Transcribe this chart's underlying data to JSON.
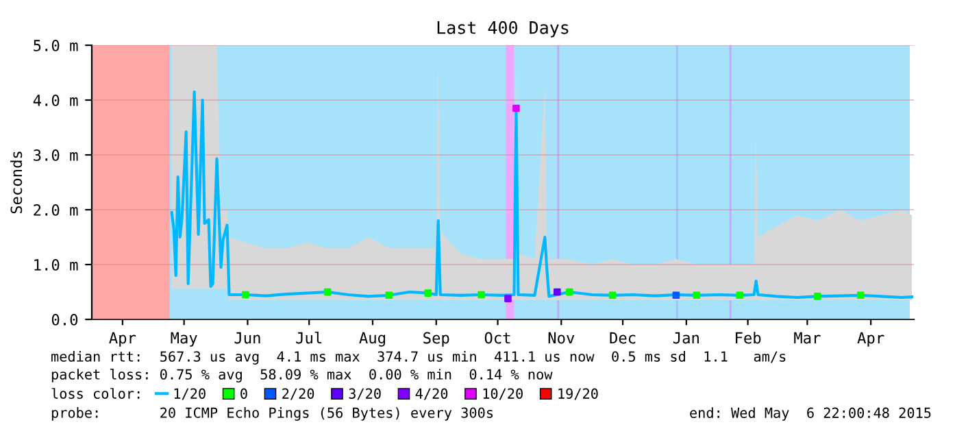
{
  "chart_data": {
    "type": "line",
    "title": "Last 400 Days",
    "ylabel": "Seconds",
    "x": [
      "2014-05-10",
      "2014-05-11",
      "2014-05-12",
      "2014-05-13",
      "2014-05-14",
      "2014-05-15",
      "2014-05-17",
      "2014-05-18",
      "2014-05-20",
      "2014-05-21",
      "2014-05-23",
      "2014-05-25",
      "2014-05-26",
      "2014-05-28",
      "2014-05-29",
      "2014-05-30",
      "2014-06-01",
      "2014-06-03",
      "2014-06-04",
      "2014-06-06",
      "2014-06-07",
      "2014-06-15",
      "2014-06-25",
      "2014-07-05",
      "2014-07-15",
      "2014-07-25",
      "2014-08-04",
      "2014-08-14",
      "2014-08-24",
      "2014-09-03",
      "2014-09-12",
      "2014-09-16",
      "2014-09-17",
      "2014-09-18",
      "2014-09-28",
      "2014-10-08",
      "2014-10-18",
      "2014-10-24",
      "2014-10-25",
      "2014-10-26",
      "2014-11-03",
      "2014-11-08",
      "2014-11-09",
      "2014-11-10",
      "2014-11-20",
      "2014-12-01",
      "2014-12-11",
      "2014-12-21",
      "2015-01-01",
      "2015-01-11",
      "2015-01-21",
      "2015-02-01",
      "2015-02-11",
      "2015-02-18",
      "2015-02-19",
      "2015-02-20",
      "2015-03-01",
      "2015-03-11",
      "2015-03-21",
      "2015-04-01",
      "2015-04-11",
      "2015-04-21",
      "2015-05-01",
      "2015-05-06"
    ],
    "series": [
      {
        "name": "1/20",
        "color": "#00b8ff",
        "values": [
          1.95,
          1.65,
          0.8,
          2.6,
          1.5,
          1.85,
          3.42,
          0.65,
          2.97,
          4.15,
          1.55,
          4.0,
          1.75,
          1.82,
          0.6,
          0.65,
          2.93,
          0.95,
          1.45,
          1.72,
          0.45,
          0.45,
          0.43,
          0.46,
          0.48,
          0.5,
          0.45,
          0.42,
          0.44,
          0.5,
          0.48,
          0.45,
          1.8,
          0.45,
          0.44,
          0.45,
          0.44,
          0.45,
          3.85,
          0.45,
          0.44,
          1.5,
          0.9,
          0.42,
          0.5,
          0.45,
          0.44,
          0.45,
          0.43,
          0.45,
          0.44,
          0.45,
          0.44,
          0.45,
          0.7,
          0.45,
          0.42,
          0.4,
          0.42,
          0.43,
          0.44,
          0.42,
          0.4,
          0.41
        ],
        "lower": [
          0.55,
          0.55,
          0.55,
          0.55,
          0.55,
          0.55,
          0.55,
          0.55,
          0.55,
          0.55,
          0.55,
          0.55,
          0.55,
          0.55,
          0.55,
          0.55,
          0.55,
          0.55,
          0.55,
          0.55,
          0.35,
          0.35,
          0.35,
          0.35,
          0.35,
          0.35,
          0.35,
          0.35,
          0.35,
          0.35,
          0.35,
          0.35,
          0.35,
          0.35,
          0.35,
          0.35,
          0.35,
          0.35,
          0.35,
          0.35,
          0.35,
          0.35,
          0.35,
          0.35,
          0.35,
          0.35,
          0.35,
          0.35,
          0.35,
          0.35,
          0.35,
          0.35,
          0.35,
          0.35,
          0.35,
          0.35,
          0.35,
          0.35,
          0.35,
          0.35,
          0.35,
          0.35,
          0.35,
          0.35
        ],
        "upper": [
          5.0,
          5.0,
          5.0,
          5.0,
          5.0,
          5.0,
          5.0,
          5.0,
          5.0,
          5.0,
          5.0,
          5.0,
          5.0,
          5.0,
          5.0,
          5.0,
          5.0,
          2.0,
          2.0,
          2.0,
          1.5,
          1.4,
          1.3,
          1.3,
          1.4,
          1.3,
          1.3,
          1.5,
          1.3,
          1.3,
          1.3,
          1.3,
          5.0,
          1.6,
          1.2,
          1.1,
          1.1,
          1.1,
          5.0,
          1.2,
          1.1,
          4.3,
          1.6,
          1.1,
          1.1,
          1.0,
          1.1,
          1.0,
          1.0,
          1.1,
          1.0,
          1.0,
          1.0,
          1.0,
          3.5,
          1.5,
          1.7,
          1.9,
          1.8,
          2.0,
          1.8,
          1.9,
          2.0,
          1.9
        ]
      },
      {
        "type": "scatter",
        "name": "0",
        "color": "#00ff00",
        "marker": "square",
        "x": [
          "2014-06-15",
          "2014-07-25",
          "2014-08-24",
          "2014-09-12",
          "2014-10-08",
          "2014-11-20",
          "2014-12-11",
          "2015-01-21",
          "2015-02-11",
          "2015-03-21",
          "2015-04-11"
        ],
        "values": [
          0.45,
          0.5,
          0.44,
          0.48,
          0.45,
          0.5,
          0.44,
          0.44,
          0.44,
          0.42,
          0.44
        ]
      },
      {
        "type": "scatter",
        "name": "2/20",
        "color": "#0059ff",
        "marker": "square",
        "x": [
          "2015-01-11"
        ],
        "values": [
          0.44
        ]
      },
      {
        "type": "scatter",
        "name": "3/20",
        "color": "#5e00ff",
        "marker": "square",
        "x": [
          "2014-11-14"
        ],
        "values": [
          0.5
        ]
      },
      {
        "type": "scatter",
        "name": "4/20",
        "color": "#7e00ff",
        "marker": "square",
        "x": [
          "2014-10-21"
        ],
        "values": [
          0.38
        ]
      },
      {
        "type": "scatter",
        "name": "10/20",
        "color": "#dd00ff",
        "marker": "square",
        "x": [
          "2014-10-25"
        ],
        "values": [
          3.85
        ]
      }
    ],
    "bands": [
      {
        "axis": "x",
        "from": "2014-05-09",
        "to": "2015-05-05",
        "color": "#a6e3fb"
      },
      {
        "axis": "x",
        "from": "2015-01-11",
        "to": "2015-01-12",
        "color": "#a6c0fb"
      },
      {
        "axis": "x",
        "from": "2015-02-06",
        "to": "2015-02-07",
        "color": "#c8a6fb"
      },
      {
        "axis": "x",
        "from": "2014-11-14",
        "to": "2014-11-15",
        "color": "#c8a6fb"
      },
      {
        "axis": "x",
        "from": "2014-10-20",
        "to": "2014-10-24",
        "color": "#f0a6fb"
      },
      {
        "axis": "x",
        "from": "2014-04-01",
        "to": "2014-05-09",
        "label": "19/20",
        "color": "#ff0000"
      }
    ],
    "xlim": [
      "2014-04-01",
      "2015-05-07"
    ],
    "xticks": [
      {
        "value": "2014-04-16",
        "label": "Apr"
      },
      {
        "value": "2014-05-16",
        "label": "May"
      },
      {
        "value": "2014-06-16",
        "label": "Jun"
      },
      {
        "value": "2014-07-16",
        "label": "Jul"
      },
      {
        "value": "2014-08-16",
        "label": "Aug"
      },
      {
        "value": "2014-09-16",
        "label": "Sep"
      },
      {
        "value": "2014-10-16",
        "label": "Oct"
      },
      {
        "value": "2014-11-16",
        "label": "Nov"
      },
      {
        "value": "2014-12-16",
        "label": "Dec"
      },
      {
        "value": "2015-01-16",
        "label": "Jan"
      },
      {
        "value": "2015-02-15",
        "label": "Feb"
      },
      {
        "value": "2015-03-16",
        "label": "Mar"
      },
      {
        "value": "2015-04-16",
        "label": "Apr"
      }
    ],
    "ylim": [
      0,
      5.0
    ],
    "yticks": [
      {
        "value": 0,
        "label": "0.0"
      },
      {
        "value": 1,
        "label": "1.0 m"
      },
      {
        "value": 2,
        "label": "2.0 m"
      },
      {
        "value": 3,
        "label": "3.0 m"
      },
      {
        "value": 4,
        "label": "4.0 m"
      },
      {
        "value": 5,
        "label": "5.0 m"
      }
    ],
    "grid": "y",
    "legend": "bottom",
    "legend_title": "loss color:",
    "marker": "none",
    "line_style": "solid",
    "annotations": [
      "median rtt:  567.3 us avg  4.1 ms max  374.7 us min  411.1 us now  0.5 ms sd  1.1   am/s",
      "packet loss: 0.75 % avg  58.09 % max  0.00 % min  0.14 % now",
      "probe:       20 ICMP Echo Pings (56 Bytes) every 300s",
      "end: Wed May  6 22:00:48 2015"
    ]
  }
}
